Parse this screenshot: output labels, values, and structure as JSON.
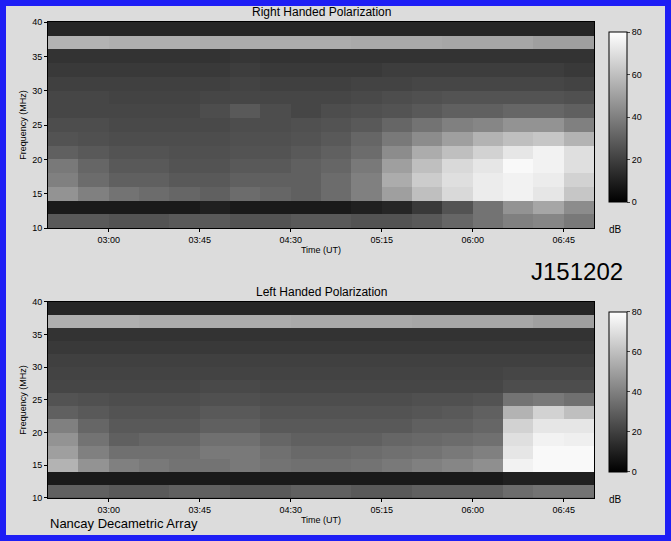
{
  "chart_data": [
    {
      "type": "heatmap",
      "title": "Right Handed Polarization",
      "x_label": "Time (UT)",
      "y_label": "Frequency (MHz)",
      "x": [
        2.625,
        2.875,
        3.125,
        3.375,
        3.625,
        3.875,
        4.125,
        4.375,
        4.625,
        4.875,
        5.125,
        5.375,
        5.625,
        5.875,
        6.125,
        6.375,
        6.625,
        6.875
      ],
      "y": [
        11,
        13,
        15,
        17,
        19,
        21,
        23,
        25,
        27,
        29,
        31,
        33,
        35,
        37,
        39
      ],
      "z": [
        [
          28,
          28,
          26,
          26,
          28,
          28,
          26,
          26,
          28,
          28,
          26,
          26,
          28,
          32,
          36,
          40,
          42,
          38
        ],
        [
          8,
          8,
          8,
          8,
          8,
          10,
          8,
          8,
          8,
          8,
          10,
          12,
          18,
          26,
          36,
          46,
          52,
          44
        ],
        [
          46,
          40,
          36,
          34,
          32,
          30,
          34,
          32,
          30,
          34,
          40,
          50,
          60,
          68,
          74,
          76,
          72,
          62
        ],
        [
          40,
          34,
          30,
          30,
          28,
          28,
          30,
          30,
          30,
          34,
          40,
          54,
          64,
          70,
          74,
          76,
          74,
          66
        ],
        [
          38,
          32,
          28,
          28,
          26,
          26,
          28,
          28,
          30,
          32,
          38,
          50,
          60,
          68,
          72,
          78,
          76,
          70
        ],
        [
          30,
          28,
          26,
          26,
          25,
          25,
          26,
          26,
          28,
          30,
          34,
          44,
          54,
          60,
          66,
          72,
          76,
          70
        ],
        [
          26,
          25,
          24,
          24,
          24,
          24,
          25,
          25,
          26,
          28,
          32,
          38,
          44,
          50,
          56,
          60,
          62,
          56
        ],
        [
          24,
          24,
          23,
          23,
          23,
          23,
          24,
          24,
          25,
          26,
          28,
          32,
          36,
          40,
          42,
          46,
          46,
          40
        ],
        [
          22,
          22,
          22,
          22,
          22,
          24,
          28,
          24,
          22,
          24,
          25,
          26,
          28,
          30,
          30,
          32,
          32,
          30
        ],
        [
          22,
          22,
          21,
          21,
          21,
          22,
          22,
          22,
          22,
          22,
          23,
          24,
          25,
          26,
          26,
          26,
          26,
          25
        ],
        [
          20,
          20,
          20,
          20,
          20,
          20,
          21,
          20,
          20,
          20,
          21,
          21,
          22,
          22,
          22,
          22,
          22,
          21
        ],
        [
          18,
          18,
          18,
          18,
          18,
          18,
          19,
          18,
          18,
          18,
          18,
          19,
          19,
          19,
          19,
          19,
          19,
          18
        ],
        [
          16,
          16,
          16,
          16,
          16,
          16,
          17,
          16,
          16,
          16,
          16,
          16,
          16,
          16,
          16,
          16,
          16,
          16
        ],
        [
          56,
          56,
          55,
          55,
          55,
          54,
          54,
          54,
          54,
          54,
          53,
          53,
          53,
          52,
          52,
          52,
          50,
          50
        ],
        [
          12,
          12,
          12,
          12,
          12,
          12,
          12,
          12,
          12,
          12,
          12,
          12,
          12,
          12,
          12,
          12,
          12,
          12
        ]
      ],
      "xlim": [
        2.5,
        7.0
      ],
      "xticks": [
        {
          "value": 3.0,
          "label": "03:00"
        },
        {
          "value": 3.75,
          "label": "03:45"
        },
        {
          "value": 4.5,
          "label": "04:30"
        },
        {
          "value": 5.25,
          "label": "05:15"
        },
        {
          "value": 6.0,
          "label": "06:00"
        },
        {
          "value": 6.75,
          "label": "06:45"
        }
      ],
      "ylim": [
        10,
        40
      ],
      "yticks": [
        10,
        15,
        20,
        25,
        30,
        35,
        40
      ],
      "colorbar": {
        "range": [
          0,
          80
        ],
        "ticks": [
          0,
          20,
          40,
          60,
          80
        ],
        "label": "dB"
      },
      "grid": false
    },
    {
      "type": "heatmap",
      "title": "Left Handed Polarization",
      "x_label": "Time (UT)",
      "y_label": "Frequency (MHz)",
      "x": [
        2.625,
        2.875,
        3.125,
        3.375,
        3.625,
        3.875,
        4.125,
        4.375,
        4.625,
        4.875,
        5.125,
        5.375,
        5.625,
        5.875,
        6.125,
        6.375,
        6.625,
        6.875
      ],
      "y": [
        11,
        13,
        15,
        17,
        19,
        21,
        23,
        25,
        27,
        29,
        31,
        33,
        35,
        37,
        39
      ],
      "z": [
        [
          30,
          30,
          28,
          28,
          30,
          30,
          28,
          28,
          30,
          30,
          28,
          28,
          30,
          30,
          30,
          34,
          36,
          36
        ],
        [
          8,
          8,
          8,
          8,
          8,
          8,
          8,
          8,
          8,
          8,
          8,
          8,
          8,
          8,
          8,
          10,
          10,
          10
        ],
        [
          56,
          46,
          40,
          38,
          36,
          36,
          38,
          36,
          35,
          35,
          36,
          38,
          40,
          42,
          45,
          76,
          78,
          78
        ],
        [
          50,
          40,
          35,
          35,
          35,
          38,
          38,
          35,
          33,
          33,
          34,
          35,
          36,
          38,
          40,
          72,
          78,
          78
        ],
        [
          46,
          36,
          30,
          32,
          32,
          35,
          35,
          32,
          30,
          30,
          30,
          32,
          33,
          34,
          35,
          70,
          76,
          75
        ],
        [
          40,
          32,
          28,
          28,
          28,
          30,
          30,
          28,
          28,
          28,
          28,
          28,
          30,
          30,
          32,
          66,
          72,
          72
        ],
        [
          30,
          28,
          26,
          26,
          26,
          28,
          28,
          26,
          26,
          26,
          26,
          26,
          27,
          28,
          30,
          56,
          66,
          60
        ],
        [
          26,
          25,
          24,
          24,
          24,
          25,
          25,
          24,
          24,
          24,
          24,
          24,
          25,
          25,
          26,
          36,
          38,
          35
        ],
        [
          22,
          22,
          22,
          22,
          22,
          23,
          23,
          22,
          22,
          22,
          22,
          22,
          22,
          22,
          22,
          24,
          24,
          24
        ],
        [
          21,
          21,
          21,
          21,
          21,
          21,
          21,
          21,
          21,
          21,
          21,
          21,
          21,
          21,
          21,
          22,
          22,
          22
        ],
        [
          20,
          20,
          20,
          20,
          20,
          20,
          20,
          20,
          20,
          20,
          20,
          20,
          20,
          20,
          20,
          20,
          20,
          20
        ],
        [
          18,
          18,
          18,
          18,
          18,
          18,
          18,
          18,
          18,
          18,
          18,
          18,
          18,
          18,
          18,
          18,
          18,
          18
        ],
        [
          16,
          16,
          16,
          16,
          16,
          16,
          16,
          16,
          16,
          16,
          16,
          16,
          16,
          16,
          16,
          16,
          16,
          16
        ],
        [
          55,
          55,
          55,
          54,
          54,
          54,
          54,
          54,
          53,
          53,
          53,
          53,
          52,
          52,
          52,
          52,
          50,
          50
        ],
        [
          12,
          12,
          12,
          12,
          12,
          12,
          12,
          12,
          12,
          12,
          12,
          12,
          12,
          12,
          12,
          12,
          12,
          12
        ]
      ],
      "xlim": [
        2.5,
        7.0
      ],
      "xticks": [
        {
          "value": 3.0,
          "label": "03:00"
        },
        {
          "value": 3.75,
          "label": "03:45"
        },
        {
          "value": 4.5,
          "label": "04:30"
        },
        {
          "value": 5.25,
          "label": "05:15"
        },
        {
          "value": 6.0,
          "label": "06:00"
        },
        {
          "value": 6.75,
          "label": "06:45"
        }
      ],
      "ylim": [
        10,
        40
      ],
      "yticks": [
        10,
        15,
        20,
        25,
        30,
        35,
        40
      ],
      "colorbar": {
        "range": [
          0,
          80
        ],
        "ticks": [
          0,
          20,
          40,
          60,
          80
        ],
        "label": "dB"
      },
      "grid": false,
      "annotations": [
        "J151202",
        "Nancay Decametric Array"
      ]
    }
  ]
}
